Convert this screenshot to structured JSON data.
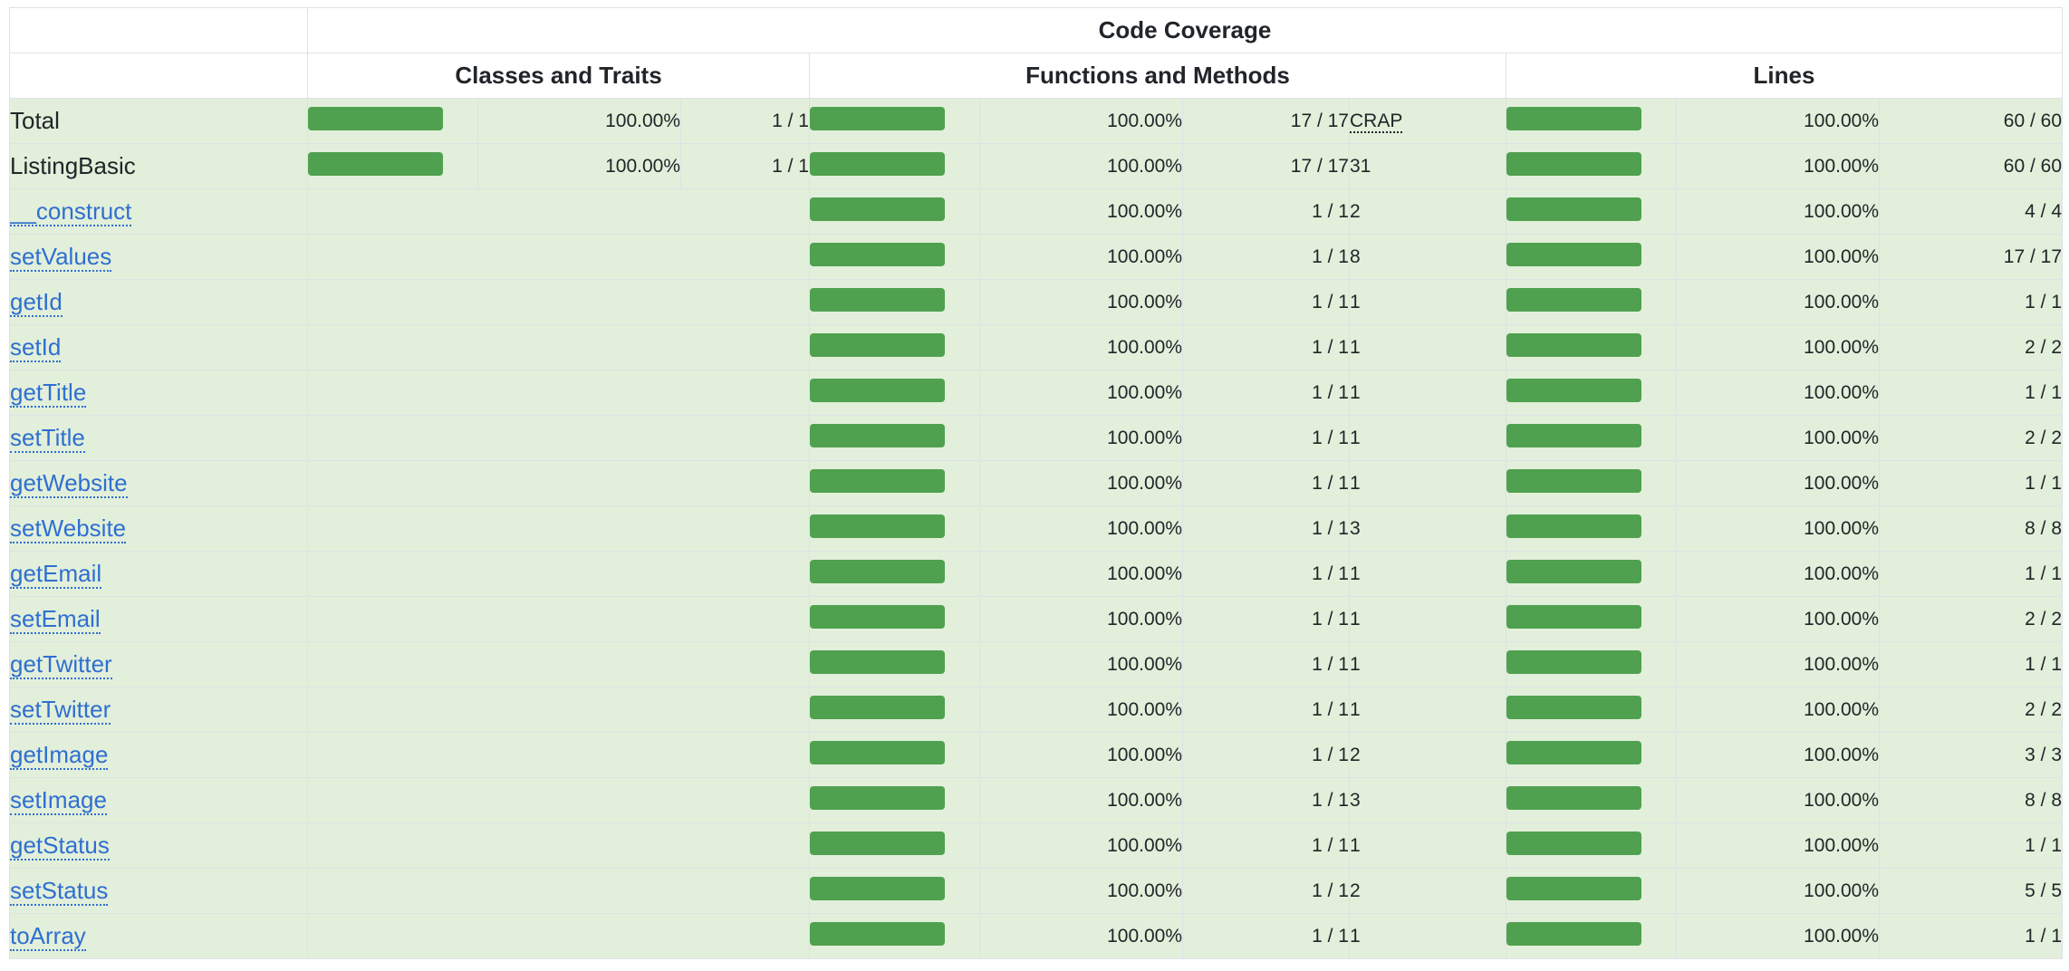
{
  "header": {
    "title": "Code Coverage",
    "groups": [
      "Classes and Traits",
      "Functions and Methods",
      "Lines"
    ]
  },
  "colors": {
    "success_bg": "#e2efda",
    "bar_fill": "#4fa14f",
    "link": "#2f6fd1"
  },
  "rows": [
    {
      "name": "Total",
      "link": false,
      "classes": {
        "coverage": 1.0,
        "percent": "100.00%",
        "ratio": "1 / 1"
      },
      "functions": {
        "coverage": 1.0,
        "percent": "100.00%",
        "ratio": "17 / 17"
      },
      "crap": "CRAP",
      "lines": {
        "coverage": 1.0,
        "percent": "100.00%",
        "ratio": "60 / 60"
      }
    },
    {
      "name": "ListingBasic",
      "link": false,
      "classes": {
        "coverage": 1.0,
        "percent": "100.00%",
        "ratio": "1 / 1"
      },
      "functions": {
        "coverage": 1.0,
        "percent": "100.00%",
        "ratio": "17 / 17"
      },
      "crap": "31",
      "lines": {
        "coverage": 1.0,
        "percent": "100.00%",
        "ratio": "60 / 60"
      }
    },
    {
      "name": "__construct",
      "link": true,
      "functions": {
        "coverage": 1.0,
        "percent": "100.00%",
        "ratio": "1 / 1"
      },
      "crap": "2",
      "lines": {
        "coverage": 1.0,
        "percent": "100.00%",
        "ratio": "4 / 4"
      }
    },
    {
      "name": "setValues",
      "link": true,
      "functions": {
        "coverage": 1.0,
        "percent": "100.00%",
        "ratio": "1 / 1"
      },
      "crap": "8",
      "lines": {
        "coverage": 1.0,
        "percent": "100.00%",
        "ratio": "17 / 17"
      }
    },
    {
      "name": "getId",
      "link": true,
      "functions": {
        "coverage": 1.0,
        "percent": "100.00%",
        "ratio": "1 / 1"
      },
      "crap": "1",
      "lines": {
        "coverage": 1.0,
        "percent": "100.00%",
        "ratio": "1 / 1"
      }
    },
    {
      "name": "setId",
      "link": true,
      "functions": {
        "coverage": 1.0,
        "percent": "100.00%",
        "ratio": "1 / 1"
      },
      "crap": "1",
      "lines": {
        "coverage": 1.0,
        "percent": "100.00%",
        "ratio": "2 / 2"
      }
    },
    {
      "name": "getTitle",
      "link": true,
      "functions": {
        "coverage": 1.0,
        "percent": "100.00%",
        "ratio": "1 / 1"
      },
      "crap": "1",
      "lines": {
        "coverage": 1.0,
        "percent": "100.00%",
        "ratio": "1 / 1"
      }
    },
    {
      "name": "setTitle",
      "link": true,
      "functions": {
        "coverage": 1.0,
        "percent": "100.00%",
        "ratio": "1 / 1"
      },
      "crap": "1",
      "lines": {
        "coverage": 1.0,
        "percent": "100.00%",
        "ratio": "2 / 2"
      }
    },
    {
      "name": "getWebsite",
      "link": true,
      "functions": {
        "coverage": 1.0,
        "percent": "100.00%",
        "ratio": "1 / 1"
      },
      "crap": "1",
      "lines": {
        "coverage": 1.0,
        "percent": "100.00%",
        "ratio": "1 / 1"
      }
    },
    {
      "name": "setWebsite",
      "link": true,
      "functions": {
        "coverage": 1.0,
        "percent": "100.00%",
        "ratio": "1 / 1"
      },
      "crap": "3",
      "lines": {
        "coverage": 1.0,
        "percent": "100.00%",
        "ratio": "8 / 8"
      }
    },
    {
      "name": "getEmail",
      "link": true,
      "functions": {
        "coverage": 1.0,
        "percent": "100.00%",
        "ratio": "1 / 1"
      },
      "crap": "1",
      "lines": {
        "coverage": 1.0,
        "percent": "100.00%",
        "ratio": "1 / 1"
      }
    },
    {
      "name": "setEmail",
      "link": true,
      "functions": {
        "coverage": 1.0,
        "percent": "100.00%",
        "ratio": "1 / 1"
      },
      "crap": "1",
      "lines": {
        "coverage": 1.0,
        "percent": "100.00%",
        "ratio": "2 / 2"
      }
    },
    {
      "name": "getTwitter",
      "link": true,
      "functions": {
        "coverage": 1.0,
        "percent": "100.00%",
        "ratio": "1 / 1"
      },
      "crap": "1",
      "lines": {
        "coverage": 1.0,
        "percent": "100.00%",
        "ratio": "1 / 1"
      }
    },
    {
      "name": "setTwitter",
      "link": true,
      "functions": {
        "coverage": 1.0,
        "percent": "100.00%",
        "ratio": "1 / 1"
      },
      "crap": "1",
      "lines": {
        "coverage": 1.0,
        "percent": "100.00%",
        "ratio": "2 / 2"
      }
    },
    {
      "name": "getImage",
      "link": true,
      "functions": {
        "coverage": 1.0,
        "percent": "100.00%",
        "ratio": "1 / 1"
      },
      "crap": "2",
      "lines": {
        "coverage": 1.0,
        "percent": "100.00%",
        "ratio": "3 / 3"
      }
    },
    {
      "name": "setImage",
      "link": true,
      "functions": {
        "coverage": 1.0,
        "percent": "100.00%",
        "ratio": "1 / 1"
      },
      "crap": "3",
      "lines": {
        "coverage": 1.0,
        "percent": "100.00%",
        "ratio": "8 / 8"
      }
    },
    {
      "name": "getStatus",
      "link": true,
      "functions": {
        "coverage": 1.0,
        "percent": "100.00%",
        "ratio": "1 / 1"
      },
      "crap": "1",
      "lines": {
        "coverage": 1.0,
        "percent": "100.00%",
        "ratio": "1 / 1"
      }
    },
    {
      "name": "setStatus",
      "link": true,
      "functions": {
        "coverage": 1.0,
        "percent": "100.00%",
        "ratio": "1 / 1"
      },
      "crap": "2",
      "lines": {
        "coverage": 1.0,
        "percent": "100.00%",
        "ratio": "5 / 5"
      }
    },
    {
      "name": "toArray",
      "link": true,
      "functions": {
        "coverage": 1.0,
        "percent": "100.00%",
        "ratio": "1 / 1"
      },
      "crap": "1",
      "lines": {
        "coverage": 1.0,
        "percent": "100.00%",
        "ratio": "1 / 1"
      }
    }
  ]
}
